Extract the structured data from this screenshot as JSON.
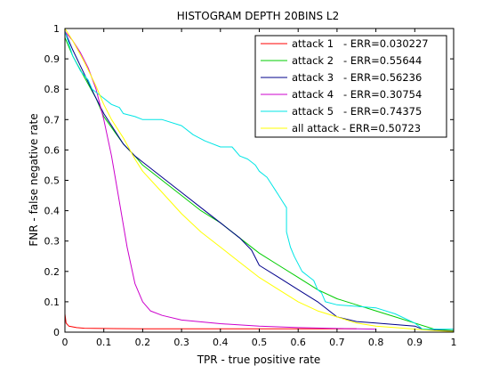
{
  "chart_data": {
    "type": "line",
    "title": "HISTOGRAM DEPTH 20BINS L2",
    "xlabel": "TPR - true positive rate",
    "ylabel": "FNR - false negative rate",
    "xlim": [
      0,
      1
    ],
    "ylim": [
      0,
      1
    ],
    "xticks": [
      "0",
      "0.1",
      "0.2",
      "0.3",
      "0.4",
      "0.5",
      "0.6",
      "0.7",
      "0.8",
      "0.9",
      "1"
    ],
    "yticks": [
      "0",
      "0.1",
      "0.2",
      "0.3",
      "0.4",
      "0.5",
      "0.6",
      "0.7",
      "0.8",
      "0.9",
      "1"
    ],
    "grid": false,
    "legend_position": "top-right",
    "series": [
      {
        "name": "attack 1   - ERR=0.030227",
        "color": "#ff0000",
        "points": [
          [
            0,
            0.06
          ],
          [
            0.003,
            0.03
          ],
          [
            0.01,
            0.02
          ],
          [
            0.03,
            0.015
          ],
          [
            0.05,
            0.013
          ],
          [
            0.1,
            0.012
          ],
          [
            0.2,
            0.011
          ],
          [
            0.4,
            0.011
          ],
          [
            0.6,
            0.011
          ],
          [
            0.75,
            0.011
          ]
        ]
      },
      {
        "name": "attack 2   - ERR=0.55644",
        "color": "#00cc00",
        "points": [
          [
            0,
            0.97
          ],
          [
            0.02,
            0.91
          ],
          [
            0.05,
            0.84
          ],
          [
            0.08,
            0.77
          ],
          [
            0.1,
            0.71
          ],
          [
            0.15,
            0.62
          ],
          [
            0.18,
            0.58
          ],
          [
            0.2,
            0.55
          ],
          [
            0.25,
            0.5
          ],
          [
            0.3,
            0.45
          ],
          [
            0.35,
            0.4
          ],
          [
            0.4,
            0.36
          ],
          [
            0.45,
            0.31
          ],
          [
            0.5,
            0.26
          ],
          [
            0.55,
            0.22
          ],
          [
            0.6,
            0.18
          ],
          [
            0.65,
            0.14
          ],
          [
            0.7,
            0.11
          ],
          [
            0.75,
            0.09
          ],
          [
            0.8,
            0.07
          ],
          [
            0.85,
            0.05
          ],
          [
            0.9,
            0.03
          ],
          [
            0.95,
            0.01
          ],
          [
            1.0,
            0.005
          ]
        ]
      },
      {
        "name": "attack 3   - ERR=0.56236",
        "color": "#00008b",
        "points": [
          [
            0,
            0.99
          ],
          [
            0.02,
            0.93
          ],
          [
            0.05,
            0.85
          ],
          [
            0.08,
            0.77
          ],
          [
            0.1,
            0.72
          ],
          [
            0.15,
            0.62
          ],
          [
            0.18,
            0.58
          ],
          [
            0.2,
            0.56
          ],
          [
            0.25,
            0.51
          ],
          [
            0.3,
            0.46
          ],
          [
            0.35,
            0.41
          ],
          [
            0.4,
            0.36
          ],
          [
            0.43,
            0.33
          ],
          [
            0.45,
            0.31
          ],
          [
            0.48,
            0.27
          ],
          [
            0.5,
            0.22
          ],
          [
            0.55,
            0.18
          ],
          [
            0.6,
            0.14
          ],
          [
            0.65,
            0.1
          ],
          [
            0.7,
            0.05
          ],
          [
            0.75,
            0.035
          ],
          [
            0.8,
            0.03
          ],
          [
            0.85,
            0.025
          ],
          [
            0.9,
            0.02
          ],
          [
            0.92,
            0.01
          ],
          [
            1.0,
            0.003
          ]
        ]
      },
      {
        "name": "attack 4   - ERR=0.30754",
        "color": "#cc00cc",
        "points": [
          [
            0,
            0.99
          ],
          [
            0.02,
            0.96
          ],
          [
            0.04,
            0.92
          ],
          [
            0.06,
            0.87
          ],
          [
            0.08,
            0.8
          ],
          [
            0.1,
            0.7
          ],
          [
            0.12,
            0.58
          ],
          [
            0.14,
            0.43
          ],
          [
            0.16,
            0.28
          ],
          [
            0.18,
            0.16
          ],
          [
            0.2,
            0.1
          ],
          [
            0.22,
            0.07
          ],
          [
            0.25,
            0.055
          ],
          [
            0.3,
            0.04
          ],
          [
            0.4,
            0.028
          ],
          [
            0.5,
            0.02
          ],
          [
            0.6,
            0.015
          ],
          [
            0.7,
            0.012
          ],
          [
            0.8,
            0.01
          ]
        ]
      },
      {
        "name": "attack 5   - ERR=0.74375",
        "color": "#00e5e5",
        "points": [
          [
            0,
            0.99
          ],
          [
            0.02,
            0.91
          ],
          [
            0.04,
            0.86
          ],
          [
            0.06,
            0.83
          ],
          [
            0.07,
            0.8
          ],
          [
            0.08,
            0.79
          ],
          [
            0.1,
            0.77
          ],
          [
            0.12,
            0.75
          ],
          [
            0.14,
            0.74
          ],
          [
            0.15,
            0.72
          ],
          [
            0.18,
            0.71
          ],
          [
            0.2,
            0.7
          ],
          [
            0.25,
            0.7
          ],
          [
            0.3,
            0.68
          ],
          [
            0.33,
            0.65
          ],
          [
            0.36,
            0.63
          ],
          [
            0.4,
            0.61
          ],
          [
            0.43,
            0.61
          ],
          [
            0.45,
            0.58
          ],
          [
            0.47,
            0.57
          ],
          [
            0.48,
            0.56
          ],
          [
            0.49,
            0.55
          ],
          [
            0.5,
            0.53
          ],
          [
            0.52,
            0.51
          ],
          [
            0.53,
            0.49
          ],
          [
            0.54,
            0.47
          ],
          [
            0.55,
            0.45
          ],
          [
            0.56,
            0.43
          ],
          [
            0.57,
            0.41
          ],
          [
            0.57,
            0.37
          ],
          [
            0.57,
            0.33
          ],
          [
            0.58,
            0.28
          ],
          [
            0.59,
            0.25
          ],
          [
            0.61,
            0.2
          ],
          [
            0.63,
            0.18
          ],
          [
            0.64,
            0.17
          ],
          [
            0.65,
            0.14
          ],
          [
            0.66,
            0.13
          ],
          [
            0.67,
            0.1
          ],
          [
            0.7,
            0.09
          ],
          [
            0.75,
            0.085
          ],
          [
            0.8,
            0.08
          ],
          [
            0.85,
            0.06
          ],
          [
            0.9,
            0.03
          ],
          [
            0.92,
            0.01
          ],
          [
            1.0,
            0.01
          ]
        ]
      },
      {
        "name": "all attack - ERR=0.50723",
        "color": "#ffff00",
        "points": [
          [
            0,
            1.0
          ],
          [
            0.02,
            0.96
          ],
          [
            0.05,
            0.89
          ],
          [
            0.08,
            0.81
          ],
          [
            0.1,
            0.75
          ],
          [
            0.12,
            0.7
          ],
          [
            0.15,
            0.64
          ],
          [
            0.18,
            0.57
          ],
          [
            0.2,
            0.53
          ],
          [
            0.25,
            0.46
          ],
          [
            0.3,
            0.39
          ],
          [
            0.35,
            0.33
          ],
          [
            0.4,
            0.28
          ],
          [
            0.45,
            0.23
          ],
          [
            0.5,
            0.18
          ],
          [
            0.55,
            0.14
          ],
          [
            0.6,
            0.1
          ],
          [
            0.65,
            0.07
          ],
          [
            0.7,
            0.05
          ],
          [
            0.75,
            0.03
          ],
          [
            0.8,
            0.02
          ],
          [
            0.85,
            0.015
          ],
          [
            0.9,
            0.01
          ],
          [
            0.95,
            0.005
          ],
          [
            1.0,
            0.002
          ]
        ]
      }
    ]
  }
}
